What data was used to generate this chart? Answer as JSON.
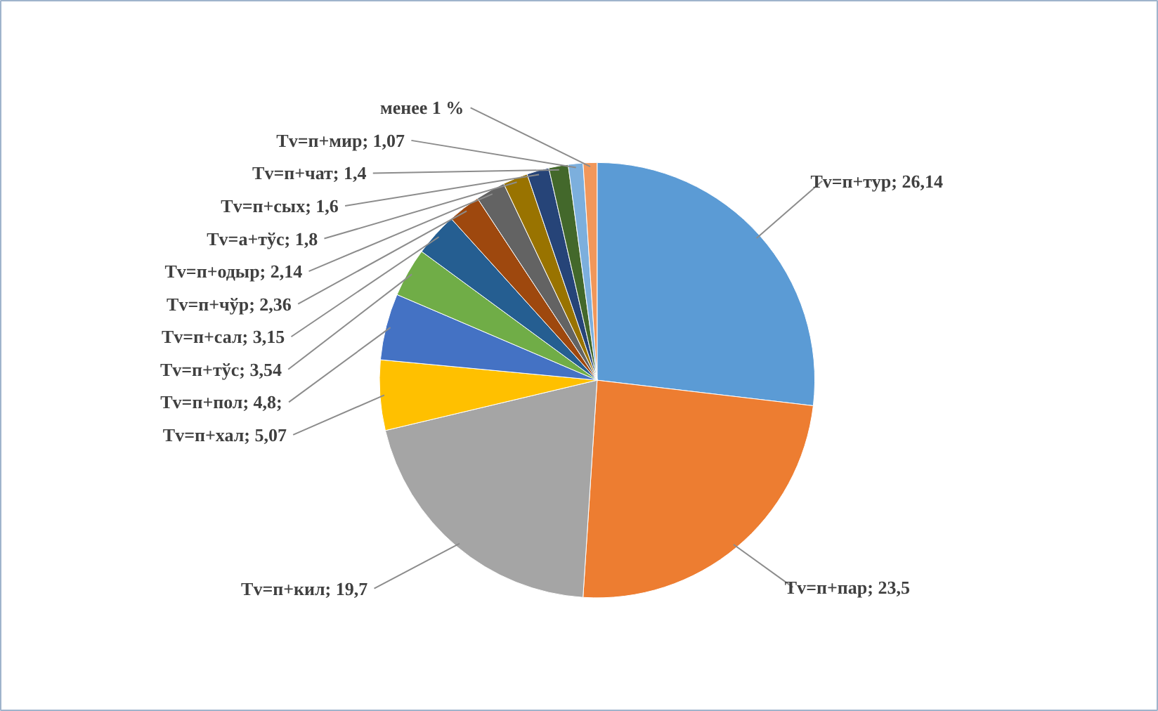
{
  "chart_data": {
    "type": "pie",
    "categories": [
      "Tv=п+тур",
      "Tv=п+пар",
      "Tv=п+кил",
      "Tv=п+хал",
      "Tv=п+пол",
      "Tv=п+тўс",
      "Tv=п+сал",
      "Tv=п+чўр",
      "Tv=п+одыр",
      "Tv=а+тўс",
      "Tv=п+сых",
      "Tv=п+чат",
      "Tv=п+мир",
      "менее 1 %"
    ],
    "values": [
      26.14,
      23.5,
      19.7,
      5.07,
      4.8,
      3.54,
      3.15,
      2.36,
      2.14,
      1.8,
      1.6,
      1.4,
      1.07,
      1
    ],
    "value_labels": [
      "26,14",
      "23,5",
      "19,7",
      "5,07",
      "4,8;",
      "3,54",
      "3,15",
      "2,36",
      "2,14",
      "1,8",
      "1,6",
      "1,4",
      "1,07",
      null
    ],
    "colors": [
      "#5b9bd5",
      "#ed7d31",
      "#a5a5a5",
      "#ffc000",
      "#4472c4",
      "#70ad47",
      "#255e91",
      "#9e480e",
      "#636363",
      "#997300",
      "#264478",
      "#43682b",
      "#7cafdd",
      "#f1975a"
    ]
  }
}
